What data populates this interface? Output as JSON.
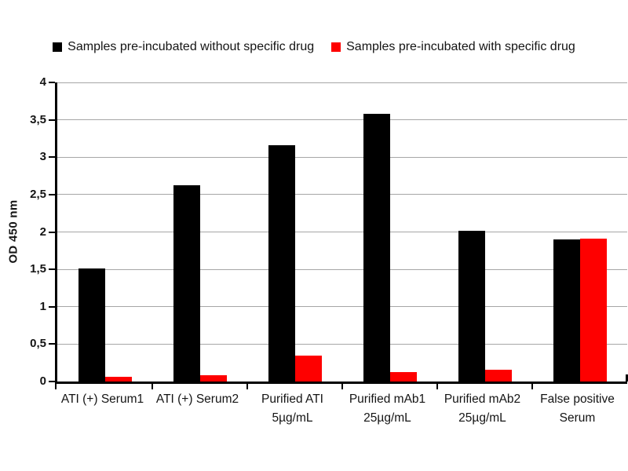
{
  "chart_data": {
    "type": "bar",
    "title": "",
    "ylabel": "OD 450 nm",
    "xlabel": "",
    "ylim": [
      0,
      4
    ],
    "grid": true,
    "legend_position": "top",
    "yticks": [
      {
        "value": 0,
        "label": "0"
      },
      {
        "value": 0.5,
        "label": "0,5"
      },
      {
        "value": 1,
        "label": "1"
      },
      {
        "value": 1.5,
        "label": "1,5"
      },
      {
        "value": 2,
        "label": "2"
      },
      {
        "value": 2.5,
        "label": "2,5"
      },
      {
        "value": 3,
        "label": "3"
      },
      {
        "value": 3.5,
        "label": "3,5"
      },
      {
        "value": 4,
        "label": "4"
      }
    ],
    "categories": [
      "ATI (+) Serum1",
      "ATI (+) Serum2",
      "Purified ATI\n5µg/mL",
      "Purified mAb1\n25µg/mL",
      "Purified mAb2\n25µg/mL",
      "False positive\nSerum"
    ],
    "series": [
      {
        "name": "Samples pre-incubated without specific drug",
        "color": "#000000",
        "values": [
          1.51,
          2.62,
          3.16,
          3.58,
          2.02,
          1.9
        ]
      },
      {
        "name": "Samples pre-incubated with specific drug",
        "color": "#fe0000",
        "values": [
          0.06,
          0.08,
          0.35,
          0.13,
          0.16,
          1.91
        ]
      }
    ],
    "colors": {
      "gridline": "#a6a6a6",
      "axis": "#000000",
      "text": "#141414",
      "background": "#ffffff"
    }
  }
}
